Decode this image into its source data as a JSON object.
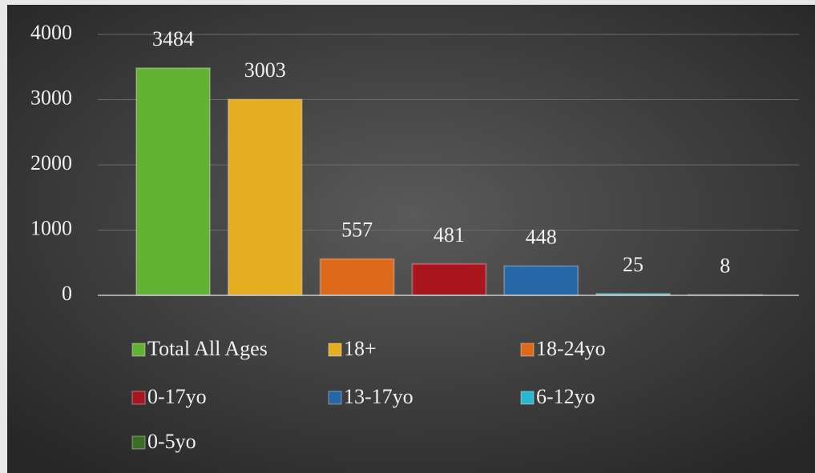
{
  "chart_data": {
    "type": "bar",
    "categories": [
      null
    ],
    "series": [
      {
        "name": "Total All Ages",
        "color": "#62b234",
        "values": [
          3484
        ]
      },
      {
        "name": "18+",
        "color": "#e4ad22",
        "values": [
          3003
        ]
      },
      {
        "name": "18-24yo",
        "color": "#df691b",
        "values": [
          557
        ]
      },
      {
        "name": "0-17yo",
        "color": "#a9161d",
        "values": [
          481
        ]
      },
      {
        "name": "13-17yo",
        "color": "#2466a6",
        "values": [
          448
        ]
      },
      {
        "name": "6-12yo",
        "color": "#2ab6d0",
        "values": [
          25
        ]
      },
      {
        "name": "0-5yo",
        "color": "#3b6f26",
        "values": [
          8
        ]
      }
    ],
    "ylim": [
      0,
      4000
    ],
    "yticks": [
      0,
      1000,
      2000,
      3000,
      4000
    ],
    "grid": true,
    "legend": "bottom"
  }
}
